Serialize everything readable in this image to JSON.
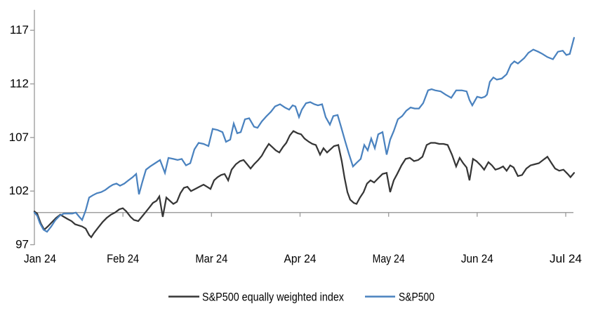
{
  "chart_data": {
    "type": "line",
    "title": "",
    "xlabel": "",
    "ylabel": "",
    "x_axis": {
      "unit": "month",
      "tick_labels": [
        "Jan 24",
        "Feb 24",
        "Mar 24",
        "Apr 24",
        "May 24",
        "Jun 24",
        "Jul 24"
      ]
    },
    "y_axis": {
      "ticks": [
        97,
        102,
        107,
        112,
        117
      ],
      "min": 97,
      "max": 117,
      "baseline": 100
    },
    "grid": "off",
    "legend_position": "bottom-center",
    "colors": {
      "axis": "#9f9f9f",
      "baseline": "#a0a0a0",
      "text": "#000000"
    },
    "series": [
      {
        "name": "S&P500 equally weighted index",
        "color": "#363636",
        "points": [
          [
            0,
            100.1
          ],
          [
            0.032,
            99.9
          ],
          [
            0.071,
            99.0
          ],
          [
            0.111,
            98.4
          ],
          [
            0.151,
            98.7
          ],
          [
            0.198,
            99.1
          ],
          [
            0.246,
            99.5
          ],
          [
            0.293,
            99.8
          ],
          [
            0.333,
            99.6
          ],
          [
            0.373,
            99.4
          ],
          [
            0.42,
            99.2
          ],
          [
            0.46,
            98.9
          ],
          [
            0.499,
            98.8
          ],
          [
            0.539,
            98.7
          ],
          [
            0.579,
            98.5
          ],
          [
            0.618,
            97.9
          ],
          [
            0.642,
            97.7
          ],
          [
            0.674,
            98.1
          ],
          [
            0.721,
            98.6
          ],
          [
            0.769,
            99.1
          ],
          [
            0.816,
            99.5
          ],
          [
            0.864,
            99.8
          ],
          [
            0.911,
            100.0
          ],
          [
            0.959,
            100.3
          ],
          [
            0.999,
            100.4
          ],
          [
            1.038,
            100.1
          ],
          [
            1.086,
            99.6
          ],
          [
            1.125,
            99.3
          ],
          [
            1.173,
            99.2
          ],
          [
            1.213,
            99.6
          ],
          [
            1.252,
            100.0
          ],
          [
            1.292,
            100.4
          ],
          [
            1.339,
            100.9
          ],
          [
            1.379,
            101.1
          ],
          [
            1.411,
            101.5
          ],
          [
            1.45,
            99.6
          ],
          [
            1.49,
            101.4
          ],
          [
            1.53,
            101.1
          ],
          [
            1.569,
            100.8
          ],
          [
            1.609,
            101.0
          ],
          [
            1.649,
            101.8
          ],
          [
            1.688,
            102.3
          ],
          [
            1.728,
            102.4
          ],
          [
            1.768,
            102.0
          ],
          [
            1.815,
            102.2
          ],
          [
            1.862,
            102.4
          ],
          [
            1.91,
            102.6
          ],
          [
            1.95,
            102.4
          ],
          [
            1.989,
            102.2
          ],
          [
            2.029,
            103.0
          ],
          [
            2.069,
            103.3
          ],
          [
            2.108,
            103.5
          ],
          [
            2.148,
            103.6
          ],
          [
            2.188,
            103.0
          ],
          [
            2.227,
            104.0
          ],
          [
            2.275,
            104.5
          ],
          [
            2.322,
            104.8
          ],
          [
            2.362,
            104.9
          ],
          [
            2.402,
            104.5
          ],
          [
            2.441,
            104.1
          ],
          [
            2.481,
            104.5
          ],
          [
            2.528,
            104.9
          ],
          [
            2.568,
            105.3
          ],
          [
            2.608,
            105.9
          ],
          [
            2.647,
            106.4
          ],
          [
            2.687,
            106.1
          ],
          [
            2.726,
            105.8
          ],
          [
            2.766,
            105.6
          ],
          [
            2.806,
            106.1
          ],
          [
            2.845,
            106.5
          ],
          [
            2.885,
            107.2
          ],
          [
            2.925,
            107.6
          ],
          [
            2.972,
            107.4
          ],
          [
            3.012,
            107.3
          ],
          [
            3.051,
            106.9
          ],
          [
            3.099,
            106.6
          ],
          [
            3.139,
            106.4
          ],
          [
            3.178,
            106.3
          ],
          [
            3.226,
            105.4
          ],
          [
            3.265,
            106.0
          ],
          [
            3.305,
            105.6
          ],
          [
            3.344,
            105.9
          ],
          [
            3.384,
            106.2
          ],
          [
            3.432,
            106.3
          ],
          [
            3.471,
            104.8
          ],
          [
            3.503,
            103.2
          ],
          [
            3.535,
            101.9
          ],
          [
            3.566,
            101.2
          ],
          [
            3.606,
            100.9
          ],
          [
            3.638,
            100.8
          ],
          [
            3.677,
            101.4
          ],
          [
            3.717,
            101.9
          ],
          [
            3.756,
            102.7
          ],
          [
            3.796,
            103.0
          ],
          [
            3.836,
            102.8
          ],
          [
            3.883,
            103.2
          ],
          [
            3.931,
            103.6
          ],
          [
            3.978,
            103.7
          ],
          [
            4.018,
            101.9
          ],
          [
            4.058,
            103.0
          ],
          [
            4.097,
            103.6
          ],
          [
            4.145,
            104.4
          ],
          [
            4.192,
            105.0
          ],
          [
            4.24,
            105.1
          ],
          [
            4.287,
            104.8
          ],
          [
            4.335,
            104.9
          ],
          [
            4.382,
            105.2
          ],
          [
            4.43,
            106.3
          ],
          [
            4.477,
            106.5
          ],
          [
            4.525,
            106.5
          ],
          [
            4.572,
            106.4
          ],
          [
            4.62,
            106.4
          ],
          [
            4.667,
            106.3
          ],
          [
            4.715,
            105.4
          ],
          [
            4.763,
            104.3
          ],
          [
            4.802,
            105.1
          ],
          [
            4.842,
            104.6
          ],
          [
            4.881,
            104.2
          ],
          [
            4.913,
            103.0
          ],
          [
            4.953,
            105.0
          ],
          [
            4.992,
            104.8
          ],
          [
            5.04,
            104.4
          ],
          [
            5.079,
            104.0
          ],
          [
            5.127,
            104.7
          ],
          [
            5.167,
            104.4
          ],
          [
            5.206,
            104.0
          ],
          [
            5.246,
            104.1
          ],
          [
            5.293,
            104.3
          ],
          [
            5.333,
            103.9
          ],
          [
            5.373,
            104.4
          ],
          [
            5.412,
            104.2
          ],
          [
            5.46,
            103.4
          ],
          [
            5.507,
            103.5
          ],
          [
            5.555,
            104.1
          ],
          [
            5.602,
            104.4
          ],
          [
            5.65,
            104.5
          ],
          [
            5.697,
            104.6
          ],
          [
            5.745,
            104.9
          ],
          [
            5.793,
            105.2
          ],
          [
            5.84,
            104.6
          ],
          [
            5.88,
            104.1
          ],
          [
            5.927,
            103.9
          ],
          [
            5.975,
            104.0
          ],
          [
            6.022,
            103.6
          ],
          [
            6.054,
            103.3
          ],
          [
            6.094,
            103.7
          ]
        ]
      },
      {
        "name": "S&P500",
        "color": "#4a82bf",
        "points": [
          [
            0,
            100.0
          ],
          [
            0.032,
            99.7
          ],
          [
            0.063,
            99.0
          ],
          [
            0.103,
            98.4
          ],
          [
            0.143,
            98.2
          ],
          [
            0.19,
            98.7
          ],
          [
            0.238,
            99.3
          ],
          [
            0.285,
            99.7
          ],
          [
            0.333,
            99.9
          ],
          [
            0.38,
            99.9
          ],
          [
            0.428,
            99.9
          ],
          [
            0.468,
            100.0
          ],
          [
            0.507,
            99.6
          ],
          [
            0.539,
            99.3
          ],
          [
            0.579,
            100.2
          ],
          [
            0.618,
            101.4
          ],
          [
            0.658,
            101.6
          ],
          [
            0.705,
            101.8
          ],
          [
            0.753,
            101.9
          ],
          [
            0.8,
            102.1
          ],
          [
            0.848,
            102.4
          ],
          [
            0.888,
            102.6
          ],
          [
            0.927,
            102.7
          ],
          [
            0.967,
            102.5
          ],
          [
            1.015,
            102.7
          ],
          [
            1.062,
            103.0
          ],
          [
            1.11,
            103.3
          ],
          [
            1.149,
            103.6
          ],
          [
            1.181,
            101.7
          ],
          [
            1.221,
            102.9
          ],
          [
            1.26,
            104.0
          ],
          [
            1.308,
            104.3
          ],
          [
            1.363,
            104.6
          ],
          [
            1.419,
            104.9
          ],
          [
            1.474,
            103.7
          ],
          [
            1.514,
            105.1
          ],
          [
            1.569,
            105.0
          ],
          [
            1.617,
            104.9
          ],
          [
            1.664,
            105.0
          ],
          [
            1.712,
            104.4
          ],
          [
            1.76,
            104.6
          ],
          [
            1.807,
            105.9
          ],
          [
            1.855,
            106.5
          ],
          [
            1.91,
            106.4
          ],
          [
            1.966,
            106.2
          ],
          [
            2.013,
            107.8
          ],
          [
            2.069,
            107.7
          ],
          [
            2.124,
            107.5
          ],
          [
            2.164,
            106.6
          ],
          [
            2.211,
            106.8
          ],
          [
            2.251,
            108.3
          ],
          [
            2.291,
            107.4
          ],
          [
            2.33,
            107.5
          ],
          [
            2.378,
            108.7
          ],
          [
            2.425,
            108.8
          ],
          [
            2.481,
            108.0
          ],
          [
            2.52,
            107.9
          ],
          [
            2.568,
            108.5
          ],
          [
            2.623,
            109.0
          ],
          [
            2.671,
            109.4
          ],
          [
            2.718,
            109.9
          ],
          [
            2.774,
            110.1
          ],
          [
            2.829,
            109.8
          ],
          [
            2.877,
            109.6
          ],
          [
            2.916,
            110.0
          ],
          [
            2.948,
            109.9
          ],
          [
            2.988,
            108.9
          ],
          [
            3.02,
            109.6
          ],
          [
            3.067,
            110.2
          ],
          [
            3.115,
            110.3
          ],
          [
            3.162,
            110.1
          ],
          [
            3.202,
            110.0
          ],
          [
            3.249,
            110.1
          ],
          [
            3.289,
            108.9
          ],
          [
            3.337,
            108.2
          ],
          [
            3.376,
            109.0
          ],
          [
            3.424,
            109.1
          ],
          [
            3.463,
            108.0
          ],
          [
            3.511,
            106.6
          ],
          [
            3.551,
            105.5
          ],
          [
            3.598,
            104.3
          ],
          [
            3.646,
            104.7
          ],
          [
            3.685,
            105.0
          ],
          [
            3.725,
            106.3
          ],
          [
            3.764,
            105.8
          ],
          [
            3.804,
            106.9
          ],
          [
            3.844,
            106.0
          ],
          [
            3.883,
            107.3
          ],
          [
            3.931,
            107.5
          ],
          [
            3.978,
            105.4
          ],
          [
            4.018,
            106.8
          ],
          [
            4.058,
            107.6
          ],
          [
            4.105,
            108.7
          ],
          [
            4.153,
            109.0
          ],
          [
            4.2,
            109.5
          ],
          [
            4.248,
            109.8
          ],
          [
            4.295,
            109.7
          ],
          [
            4.343,
            109.7
          ],
          [
            4.39,
            110.2
          ],
          [
            4.446,
            111.4
          ],
          [
            4.485,
            111.5
          ],
          [
            4.525,
            111.4
          ],
          [
            4.588,
            111.3
          ],
          [
            4.644,
            111.0
          ],
          [
            4.707,
            110.7
          ],
          [
            4.763,
            111.4
          ],
          [
            4.826,
            111.4
          ],
          [
            4.881,
            111.3
          ],
          [
            4.913,
            110.5
          ],
          [
            4.945,
            110.0
          ],
          [
            5.0,
            110.8
          ],
          [
            5.048,
            110.7
          ],
          [
            5.087,
            110.8
          ],
          [
            5.111,
            111.0
          ],
          [
            5.143,
            112.2
          ],
          [
            5.183,
            112.6
          ],
          [
            5.222,
            112.4
          ],
          [
            5.278,
            112.5
          ],
          [
            5.333,
            112.9
          ],
          [
            5.381,
            113.8
          ],
          [
            5.42,
            114.1
          ],
          [
            5.46,
            113.9
          ],
          [
            5.531,
            114.4
          ],
          [
            5.579,
            114.9
          ],
          [
            5.634,
            115.2
          ],
          [
            5.69,
            115.0
          ],
          [
            5.737,
            114.8
          ],
          [
            5.793,
            114.5
          ],
          [
            5.856,
            114.3
          ],
          [
            5.912,
            115.0
          ],
          [
            5.967,
            115.1
          ],
          [
            6.007,
            114.7
          ],
          [
            6.046,
            114.8
          ],
          [
            6.094,
            116.3
          ]
        ]
      }
    ]
  },
  "legend": {
    "items": [
      {
        "label": "S&P500 equally weighted index"
      },
      {
        "label": "S&P500"
      }
    ]
  }
}
